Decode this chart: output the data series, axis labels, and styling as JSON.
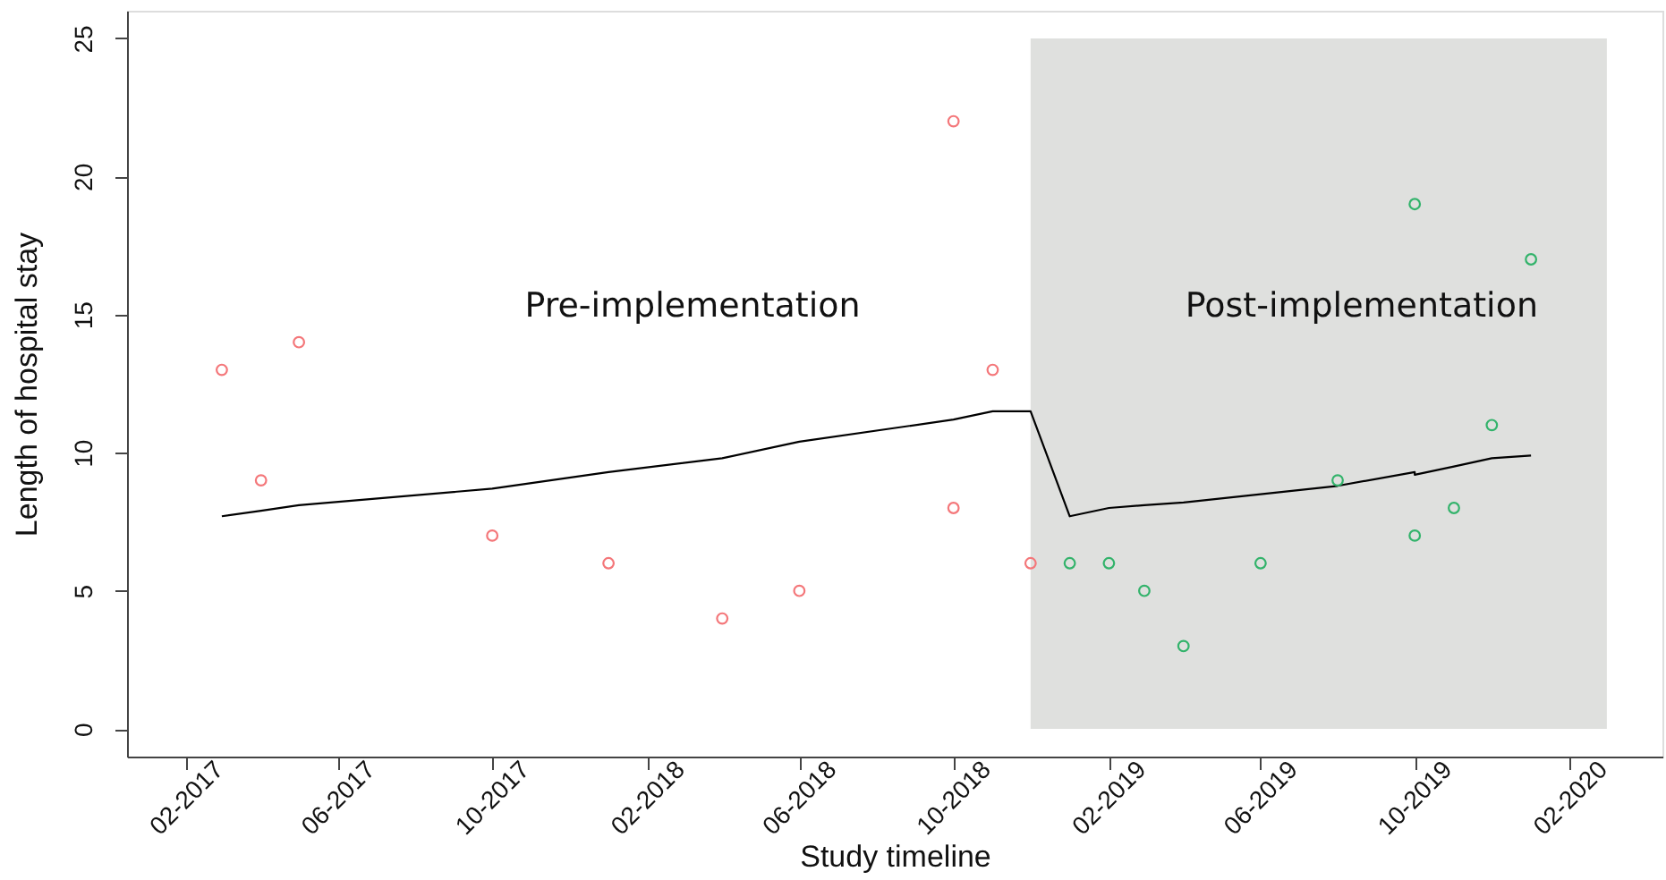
{
  "chart_data": {
    "type": "scatter",
    "xlabel": "Study timeline",
    "ylabel": "Length of hospital stay",
    "annotations": [
      "Pre-implementation"
    ],
    "series": [
      {
        "type": "scatter",
        "color": "#f4777a",
        "x": [
          "2017-03",
          "2017-04",
          "2017-05",
          "2017-10",
          "2018-01",
          "2018-04",
          "2018-06",
          "2018-10",
          "2018-10",
          "2018-11",
          "2018-12"
        ],
        "values": [
          13,
          9,
          14,
          7,
          6,
          4,
          5,
          22,
          8,
          13,
          6
        ]
      },
      {
        "type": "scatter",
        "color": "#33b36b",
        "x": [
          "2019-01",
          "2019-02",
          "2019-03",
          "2019-04",
          "2019-06",
          "2019-08",
          "2019-10",
          "2019-10",
          "2019-11",
          "2019-12",
          "2020-01"
        ],
        "values": [
          6,
          6,
          5,
          3,
          6,
          9,
          19,
          7,
          8,
          11,
          17
        ]
      },
      {
        "type": "line",
        "color": "#000000",
        "marker": "none",
        "line_style": "solid",
        "x": [
          "2017-03",
          "2017-04",
          "2017-05",
          "2017-10",
          "2018-01",
          "2018-04",
          "2018-06",
          "2018-10",
          "2018-11",
          "2018-12",
          "2019-01",
          "2019-02",
          "2019-03",
          "2019-04",
          "2019-06",
          "2019-08",
          "2019-10",
          "2019-10",
          "2019-11",
          "2019-12",
          "2020-01"
        ],
        "values": [
          7.7,
          7.9,
          8.1,
          8.7,
          9.3,
          9.8,
          10.4,
          11.2,
          11.5,
          11.5,
          7.7,
          8.0,
          8.1,
          8.2,
          8.5,
          8.8,
          9.3,
          9.2,
          9.5,
          9.8,
          9.9
        ]
      }
    ],
    "xlim": [
      "2016-12-16",
      "2020-04-14"
    ],
    "xticks": [
      {
        "value": "2017-02",
        "label": "02-2017"
      },
      {
        "value": "2017-06",
        "label": "06-2017"
      },
      {
        "value": "2017-10",
        "label": "10-2017"
      },
      {
        "value": "2018-02",
        "label": "02-2018"
      },
      {
        "value": "2018-06",
        "label": "06-2018"
      },
      {
        "value": "2018-10",
        "label": "10-2018"
      },
      {
        "value": "2019-02",
        "label": "02-2019"
      },
      {
        "value": "2019-06",
        "label": "06-2019"
      },
      {
        "value": "2019-10",
        "label": "10-2019"
      },
      {
        "value": "2020-02",
        "label": "02-2020"
      }
    ],
    "ylim": [
      -1,
      26
    ],
    "yticks": [
      0,
      5,
      10,
      15,
      20,
      25
    ],
    "bands": [
      {
        "axis": "x",
        "from": "2018-12",
        "to": "2020-03",
        "label": "Post-implementation",
        "color": "#dfe0de"
      }
    ],
    "marker": "circle",
    "grid": false
  }
}
